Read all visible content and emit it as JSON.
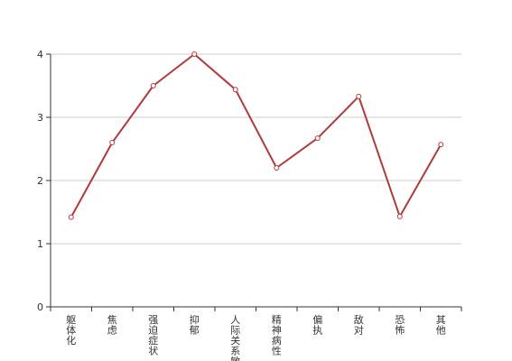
{
  "chart_data": {
    "type": "line",
    "title": "",
    "xlabel": "",
    "ylabel": "",
    "categories": [
      "躯体化",
      "焦虑",
      "强迫症状",
      "抑郁",
      "人际关系敏感",
      "精神病性",
      "偏执",
      "敌对",
      "恐怖",
      "其他"
    ],
    "series": [
      {
        "values": [
          1.42,
          2.6,
          3.5,
          4.0,
          3.44,
          2.2,
          2.67,
          3.33,
          1.43,
          2.57
        ]
      }
    ],
    "ylim": [
      0,
      4
    ],
    "yticks": [
      0,
      1,
      2,
      3,
      4
    ],
    "grid": true,
    "legend": "none",
    "colors": {
      "line": "#b03a3a",
      "marker_fill": "#ffffff",
      "grid": "#cccccc",
      "axis": "#333333"
    }
  }
}
